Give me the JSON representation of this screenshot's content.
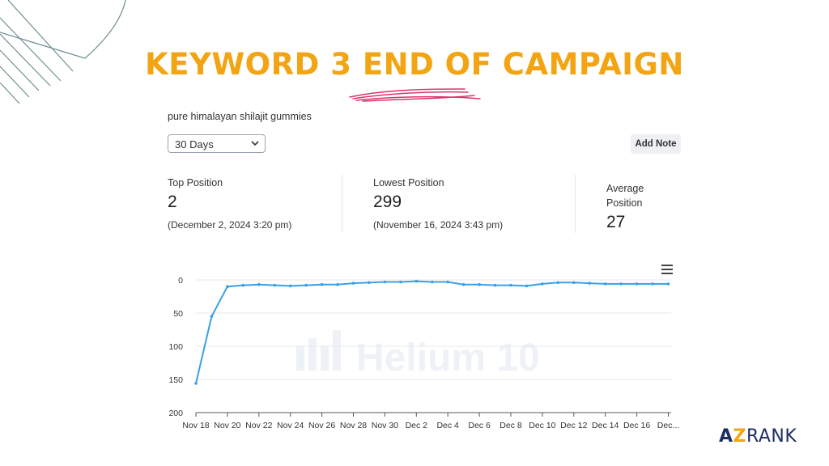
{
  "header": {
    "title": "KEYWORD 3  END OF CAMPAIGN"
  },
  "keyword": "pure himalayan shilajit gummies",
  "range_select": {
    "selected": "30 Days"
  },
  "add_note_label": "Add Note",
  "stats": {
    "top": {
      "label": "Top Position",
      "value": "2",
      "date": "(December 2, 2024 3:20 pm)"
    },
    "lowest": {
      "label": "Lowest Position",
      "value": "299",
      "date": "(November 16, 2024 3:43 pm)"
    },
    "average": {
      "label_line1": "Average",
      "label_line2": "Position",
      "value": "27"
    }
  },
  "watermark": "Helium 10",
  "brand": {
    "a": "A",
    "z": "Z",
    "rank": "RANK"
  },
  "colors": {
    "title": "#f2a413",
    "line": "#3aa0e6",
    "scribble": "#e0336c",
    "brand": "#1e2f5e"
  },
  "chart_data": {
    "type": "line",
    "title": "",
    "xlabel": "",
    "ylabel": "",
    "y_inverted": true,
    "ylim": [
      0,
      200
    ],
    "yticks": [
      0,
      50,
      100,
      150,
      200
    ],
    "xticks": [
      "Nov 18",
      "Nov 20",
      "Nov 22",
      "Nov 24",
      "Nov 26",
      "Nov 28",
      "Nov 30",
      "Dec 2",
      "Dec 4",
      "Dec 6",
      "Dec 8",
      "Dec 10",
      "Dec 12",
      "Dec 14",
      "Dec 16",
      "Dec..."
    ],
    "grid": true,
    "series": [
      {
        "x": [
          "Nov 18",
          "Nov 19",
          "Nov 20",
          "Nov 21",
          "Nov 22",
          "Nov 23",
          "Nov 24",
          "Nov 25",
          "Nov 26",
          "Nov 27",
          "Nov 28",
          "Nov 29",
          "Nov 30",
          "Dec 1",
          "Dec 2",
          "Dec 3",
          "Dec 4",
          "Dec 5",
          "Dec 6",
          "Dec 7",
          "Dec 8",
          "Dec 9",
          "Dec 10",
          "Dec 11",
          "Dec 12",
          "Dec 13",
          "Dec 14",
          "Dec 15",
          "Dec 16",
          "Dec 17",
          "Dec 18"
        ],
        "values": [
          156,
          55,
          10,
          8,
          7,
          8,
          9,
          8,
          7,
          7,
          5,
          4,
          3,
          3,
          2,
          3,
          3,
          7,
          7,
          8,
          8,
          9,
          6,
          4,
          4,
          5,
          6,
          6,
          6,
          6,
          6
        ]
      }
    ]
  }
}
